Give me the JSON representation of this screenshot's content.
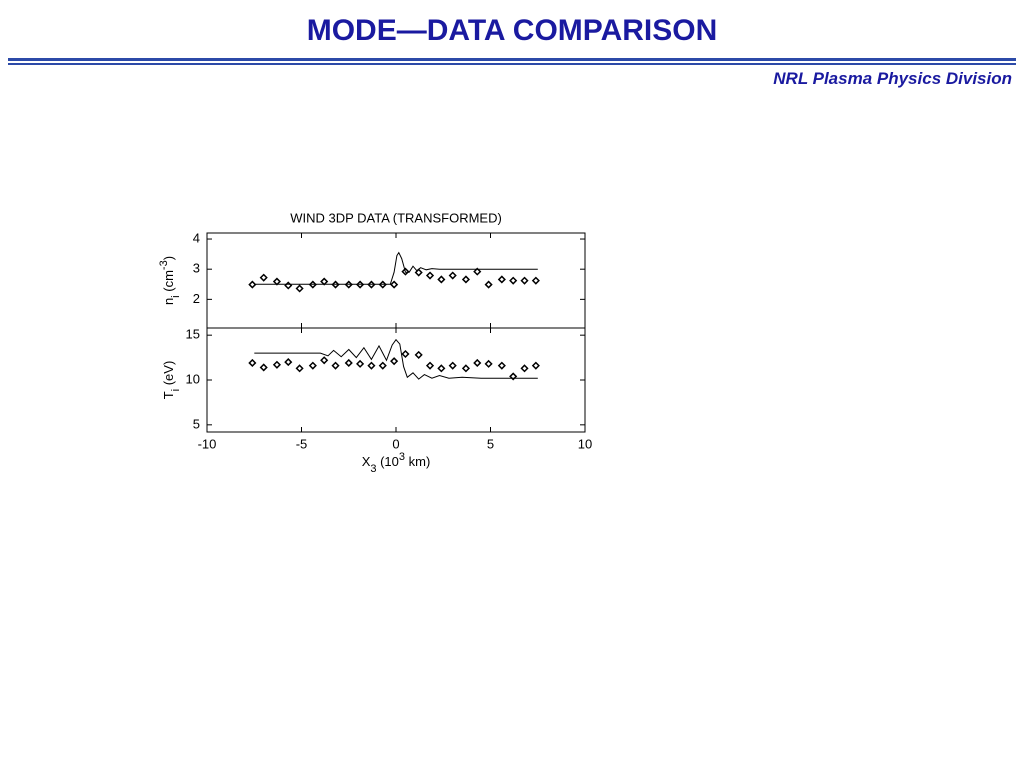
{
  "slide": {
    "title": "MODE—DATA  COMPARISON",
    "subtitle": "NRL Plasma Physics Division"
  },
  "chart_data": [
    {
      "type": "scatter",
      "title": "WIND 3DP DATA (TRANSFORMED)",
      "ylabel": [
        "n",
        "i",
        " (cm",
        "-3",
        ")"
      ],
      "xlim": [
        -10,
        10
      ],
      "ylim": [
        1.05,
        4.2
      ],
      "yticks": [
        2,
        3,
        4
      ],
      "series": [
        {
          "mark": "marker",
          "color": "#000000",
          "x": [
            -7.6,
            -7.0,
            -6.3,
            -5.7,
            -5.1,
            -4.4,
            -3.8,
            -3.2,
            -2.5,
            -1.9,
            -1.3,
            -0.7,
            -0.1,
            0.5,
            1.2,
            1.8,
            2.4,
            3.0,
            3.7,
            4.3,
            4.9,
            5.6,
            6.2,
            6.8,
            7.4
          ],
          "values": [
            2.49,
            2.72,
            2.59,
            2.46,
            2.36,
            2.49,
            2.59,
            2.49,
            2.49,
            2.49,
            2.49,
            2.49,
            2.49,
            2.92,
            2.89,
            2.79,
            2.66,
            2.79,
            2.66,
            2.92,
            2.49,
            2.66,
            2.62,
            2.62,
            2.62
          ]
        },
        {
          "mark": "line",
          "color": "#000000",
          "x": [
            -7.5,
            -0.3,
            -0.1,
            0.05,
            0.15,
            0.3,
            0.5,
            0.7,
            0.9,
            1.1,
            1.3,
            1.6,
            1.9,
            2.3,
            2.7,
            3.2,
            4.0,
            5.0,
            7.5
          ],
          "values": [
            2.5,
            2.5,
            2.9,
            3.45,
            3.55,
            3.35,
            2.9,
            2.9,
            3.1,
            2.95,
            3.05,
            2.98,
            3.02,
            3.0,
            3.0,
            3.0,
            3.0,
            3.0,
            3.0
          ]
        }
      ]
    },
    {
      "type": "scatter",
      "ylabel": [
        "T",
        "i",
        " (eV)"
      ],
      "xlabel": [
        "X",
        "3",
        "  (10",
        "3",
        " km)"
      ],
      "xlim": [
        -10,
        10
      ],
      "xticks": [
        -10,
        -5,
        0,
        5,
        10
      ],
      "ylim": [
        4.2,
        15.8
      ],
      "yticks": [
        5,
        10,
        15
      ],
      "series": [
        {
          "mark": "marker",
          "color": "#000000",
          "x": [
            -7.6,
            -7.0,
            -6.3,
            -5.7,
            -5.1,
            -4.4,
            -3.8,
            -3.2,
            -2.5,
            -1.9,
            -1.3,
            -0.7,
            -0.1,
            0.5,
            1.2,
            1.8,
            2.4,
            3.0,
            3.7,
            4.3,
            4.9,
            5.6,
            6.2,
            6.8,
            7.4
          ],
          "values": [
            11.9,
            11.4,
            11.7,
            12.0,
            11.3,
            11.6,
            12.2,
            11.6,
            11.9,
            11.8,
            11.6,
            11.6,
            12.1,
            12.9,
            12.8,
            11.6,
            11.3,
            11.6,
            11.3,
            11.9,
            11.8,
            11.6,
            10.4,
            11.3,
            11.6
          ]
        },
        {
          "mark": "line",
          "color": "#000000",
          "x": [
            -7.5,
            -4.0,
            -3.6,
            -3.3,
            -2.9,
            -2.5,
            -2.1,
            -1.7,
            -1.3,
            -0.9,
            -0.5,
            -0.2,
            0.0,
            0.2,
            0.4,
            0.6,
            0.9,
            1.2,
            1.5,
            1.9,
            2.3,
            2.8,
            3.5,
            4.5,
            7.5
          ],
          "values": [
            13.0,
            13.0,
            12.7,
            13.3,
            12.6,
            13.4,
            12.5,
            13.6,
            12.3,
            13.8,
            12.2,
            13.9,
            14.5,
            14.0,
            11.5,
            10.3,
            10.8,
            10.1,
            10.6,
            10.2,
            10.5,
            10.2,
            10.3,
            10.2,
            10.2
          ]
        }
      ]
    }
  ]
}
